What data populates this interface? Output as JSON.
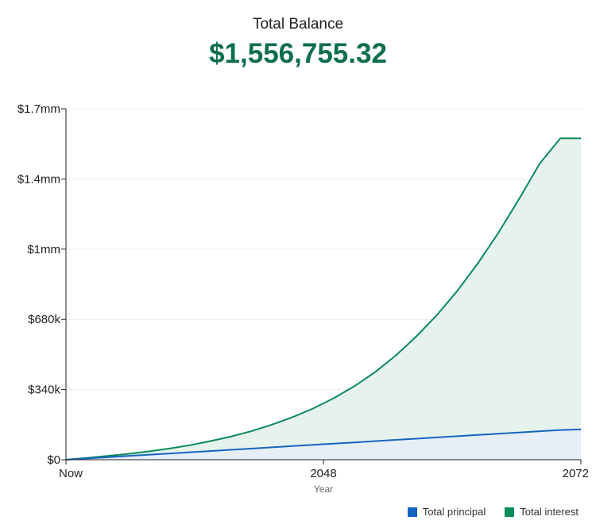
{
  "header": {
    "title": "Total Balance",
    "total": "$1,556,755.32"
  },
  "colors": {
    "principal": "#1565c0",
    "principal_fill": "#e6eef8",
    "interest": "#0b8a5a",
    "interest_fill": "#e6f2ec",
    "total_text": "#0b6e4f"
  },
  "chart_data": {
    "type": "area",
    "xlabel": "Year",
    "ylabel": "",
    "x": [
      0,
      2,
      4,
      6,
      8,
      10,
      12,
      14,
      16,
      18,
      20,
      22,
      24,
      26,
      28,
      30,
      32,
      34,
      36,
      38,
      40,
      42,
      44,
      46,
      48,
      50
    ],
    "x_tick_positions": [
      0,
      25,
      50
    ],
    "x_tick_labels": [
      "Now",
      "2048",
      "2072"
    ],
    "xlim": [
      0,
      50
    ],
    "ylim": [
      0,
      1700000
    ],
    "y_ticks": [
      0,
      340000,
      680000,
      1020000,
      1360000,
      1700000
    ],
    "y_tick_labels": [
      "$0",
      "$340k",
      "$680k",
      "$1mm",
      "$1.4mm",
      "$1.7mm"
    ],
    "grid": true,
    "legend_position": "bottom-right",
    "series": [
      {
        "name": "Total principal",
        "values": [
          0,
          6000,
          12000,
          18000,
          24000,
          30000,
          36000,
          42000,
          48000,
          54000,
          60000,
          66000,
          72000,
          78000,
          84000,
          90000,
          96000,
          102000,
          108000,
          114000,
          120000,
          126000,
          132000,
          138000,
          144000,
          147000
        ]
      },
      {
        "name": "Total interest",
        "values": [
          0,
          9000,
          18000,
          28000,
          40000,
          54000,
          70000,
          90000,
          112000,
          138000,
          170000,
          206000,
          248000,
          298000,
          356000,
          424000,
          504000,
          596000,
          700000,
          818000,
          952000,
          1100000,
          1263000,
          1435000,
          1556755,
          1556755
        ]
      }
    ]
  }
}
